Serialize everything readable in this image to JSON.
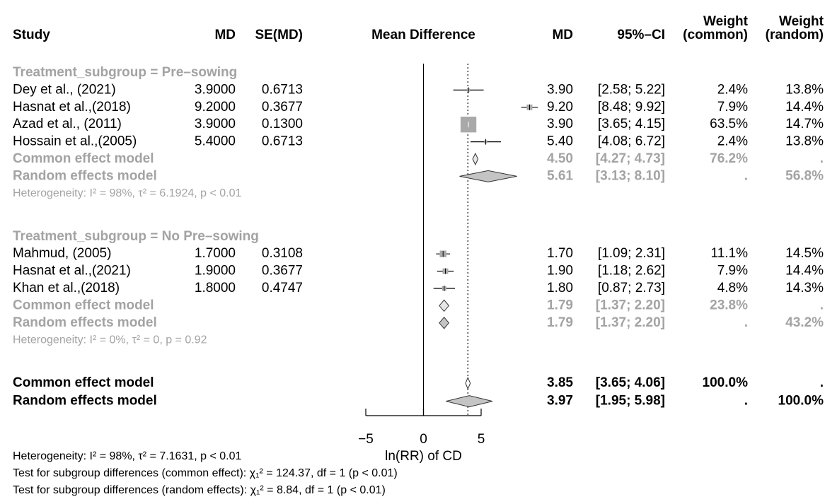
{
  "chart_data": {
    "type": "forest",
    "columns": {
      "study": "Study",
      "md": "MD",
      "se": "SE(MD)",
      "plot": "Mean Difference",
      "md2": "MD",
      "ci": "95%–CI",
      "w_common": [
        "Weight",
        "(common)"
      ],
      "w_random": [
        "Weight",
        "(random)"
      ]
    },
    "xlim": [
      -5,
      5
    ],
    "xticks": [
      {
        "value": -5,
        "label": "−5"
      },
      0,
      5
    ],
    "xlabel": "ln(RR) of CD",
    "groups": [
      {
        "label": "Treatment_subgroup = Pre–sowing",
        "studies": [
          {
            "name": "Dey et al., (2021)",
            "md": 3.9,
            "md_text": "3.9000",
            "se": "0.6713",
            "md_short": "3.90",
            "ci": [
              2.58,
              5.22
            ],
            "ci_label": "[2.58; 5.22]",
            "w_common": 2.4,
            "w_common_label": "2.4%",
            "w_random_label": "13.8%"
          },
          {
            "name": "Hasnat et al.,(2018)",
            "md": 9.2,
            "md_text": "9.2000",
            "se": "0.3677",
            "md_short": "9.20",
            "ci": [
              8.48,
              9.92
            ],
            "ci_label": "[8.48; 9.92]",
            "w_common": 7.9,
            "w_common_label": "7.9%",
            "w_random_label": "14.4%"
          },
          {
            "name": "Azad et al., (2011)",
            "md": 3.9,
            "md_text": "3.9000",
            "se": "0.1300",
            "md_short": "3.90",
            "ci": [
              3.65,
              4.15
            ],
            "ci_label": "[3.65; 4.15]",
            "w_common": 63.5,
            "w_common_label": "63.5%",
            "w_random_label": "14.7%"
          },
          {
            "name": "Hossain et al.,(2005)",
            "md": 5.4,
            "md_text": "5.4000",
            "se": "0.6713",
            "md_short": "5.40",
            "ci": [
              4.08,
              6.72
            ],
            "ci_label": "[4.08; 6.72]",
            "w_common": 2.4,
            "w_common_label": "2.4%",
            "w_random_label": "13.8%"
          }
        ],
        "common": {
          "name": "Common effect model",
          "md": 4.5,
          "md_short": "4.50",
          "ci": [
            4.27,
            4.73
          ],
          "ci_label": "[4.27; 4.73]",
          "w_common_label": "76.2%",
          "w_random_label": "."
        },
        "random": {
          "name": "Random effects model",
          "md": 5.61,
          "md_short": "5.61",
          "ci": [
            3.13,
            8.1
          ],
          "ci_label": "[3.13; 8.10]",
          "w_common_label": ".",
          "w_random_label": "56.8%"
        },
        "heterogeneity": "Heterogeneity: I² = 98%, τ² = 6.1924, p < 0.01"
      },
      {
        "label": "Treatment_subgroup = No Pre–sowing",
        "studies": [
          {
            "name": "Mahmud, (2005)",
            "md": 1.7,
            "md_text": "1.7000",
            "se": "0.3108",
            "md_short": "1.70",
            "ci": [
              1.09,
              2.31
            ],
            "ci_label": "[1.09; 2.31]",
            "w_common": 11.1,
            "w_common_label": "11.1%",
            "w_random_label": "14.5%"
          },
          {
            "name": "Hasnat et al.,(2021)",
            "md": 1.9,
            "md_text": "1.9000",
            "se": "0.3677",
            "md_short": "1.90",
            "ci": [
              1.18,
              2.62
            ],
            "ci_label": "[1.18; 2.62]",
            "w_common": 7.9,
            "w_common_label": "7.9%",
            "w_random_label": "14.4%"
          },
          {
            "name": "Khan et al.,(2018)",
            "md": 1.8,
            "md_text": "1.8000",
            "se": "0.4747",
            "md_short": "1.80",
            "ci": [
              0.87,
              2.73
            ],
            "ci_label": "[0.87; 2.73]",
            "w_common": 4.8,
            "w_common_label": "4.8%",
            "w_random_label": "14.3%"
          }
        ],
        "common": {
          "name": "Common effect model",
          "md": 1.79,
          "md_short": "1.79",
          "ci": [
            1.37,
            2.2
          ],
          "ci_label": "[1.37; 2.20]",
          "w_common_label": "23.8%",
          "w_random_label": "."
        },
        "random": {
          "name": "Random effects model",
          "md": 1.79,
          "md_short": "1.79",
          "ci": [
            1.37,
            2.2
          ],
          "ci_label": "[1.37; 2.20]",
          "w_common_label": ".",
          "w_random_label": "43.2%"
        },
        "heterogeneity": "Heterogeneity: I² = 0%, τ² = 0, p = 0.92"
      }
    ],
    "overall": {
      "common": {
        "name": "Common effect model",
        "md": 3.85,
        "md_short": "3.85",
        "ci": [
          3.65,
          4.06
        ],
        "ci_label": "[3.65; 4.06]",
        "w_common_label": "100.0%",
        "w_random_label": "."
      },
      "random": {
        "name": "Random effects model",
        "md": 3.97,
        "md_short": "3.97",
        "ci": [
          1.95,
          5.98
        ],
        "ci_label": "[1.95; 5.98]",
        "w_common_label": ".",
        "w_random_label": "100.0%"
      },
      "heterogeneity": "Heterogeneity: I² = 98%, τ² = 7.1631, p < 0.01"
    },
    "tests": [
      "Test for subgroup differences (common effect): χ₁² = 124.37, df = 1 (p < 0.01)",
      "Test for subgroup differences (random effects): χ₁² = 8.84, df = 1 (p < 0.01)"
    ]
  }
}
